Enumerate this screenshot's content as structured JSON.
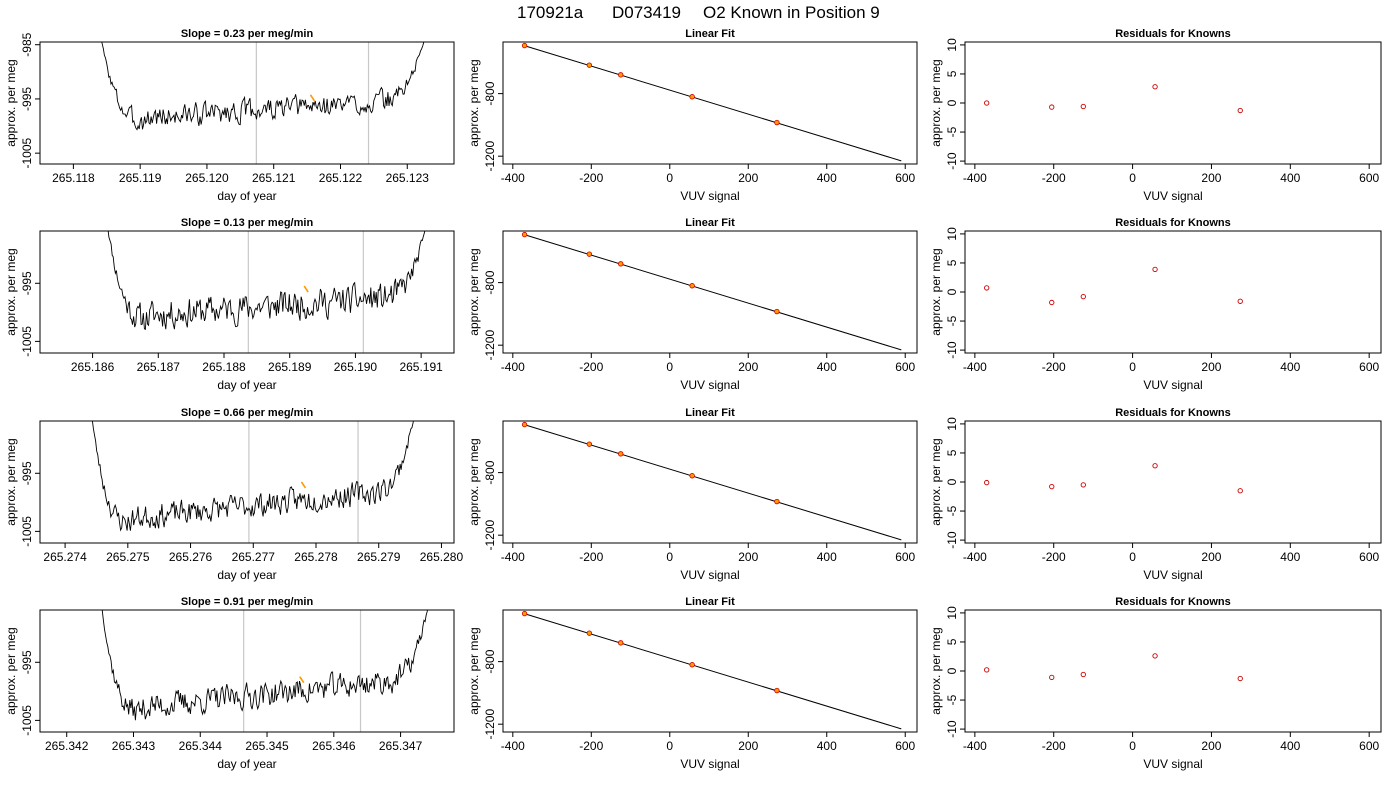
{
  "page_title": {
    "run": "170921a",
    "tank": "D073419",
    "text": "O2 Known in Position  9"
  },
  "chart_data": [
    {
      "type": "line",
      "panel": "timeseries",
      "row": 0,
      "title": "Slope =  0.23  per meg/min",
      "xlabel": "day of year",
      "ylabel": "approx. per meg",
      "xlim": [
        265.1175,
        265.1237
      ],
      "ylim": [
        -1007,
        -984.5
      ],
      "xticks": [
        "265.118",
        "265.119",
        "265.120",
        "265.121",
        "265.122",
        "265.123"
      ],
      "yticks": [
        "-985",
        "-995",
        "-1005"
      ],
      "vlines": [
        265.12074,
        265.12242
      ],
      "highlight": {
        "x": 265.12158,
        "y": -994.8
      },
      "trace": {
        "x0": 265.1184,
        "x1": 265.12328,
        "start": -983,
        "end": -983,
        "edge": 0.16,
        "base": -997.0,
        "drift": 4.0,
        "amp": 1.8,
        "seed": 3
      }
    },
    {
      "type": "line",
      "panel": "timeseries",
      "row": 1,
      "title": "Slope =  0.13  per meg/min",
      "xlabel": "day of year",
      "ylabel": "approx. per meg",
      "xlim": [
        265.1852,
        265.1915
      ],
      "ylim": [
        -1007,
        -986
      ],
      "xticks": [
        "265.186",
        "265.187",
        "265.188",
        "265.189",
        "265.190",
        "265.191"
      ],
      "yticks": [
        "-995",
        "-1005"
      ],
      "vlines": [
        265.18837,
        265.19012
      ],
      "highlight": {
        "x": 265.18925,
        "y": -996.0
      },
      "trace": {
        "x0": 265.1862,
        "x1": 265.1911,
        "start": -983,
        "end": -984,
        "edge": 0.15,
        "base": -999.0,
        "drift": 4.0,
        "amp": 2.2,
        "seed": 11
      }
    },
    {
      "type": "line",
      "panel": "timeseries",
      "row": 2,
      "title": "Slope =  0.66  per meg/min",
      "xlabel": "day of year",
      "ylabel": "approx. per meg",
      "xlim": [
        265.2736,
        265.2802
      ],
      "ylim": [
        -1007,
        -986
      ],
      "xticks": [
        "265.274",
        "265.275",
        "265.276",
        "265.277",
        "265.278",
        "265.279",
        "265.280"
      ],
      "yticks": [
        "-995",
        "-1005"
      ],
      "vlines": [
        265.27693,
        265.27867
      ],
      "highlight": {
        "x": 265.2778,
        "y": -997.0
      },
      "trace": {
        "x0": 265.2744,
        "x1": 265.2796,
        "start": -983,
        "end": -983,
        "edge": 0.14,
        "base": -1000.5,
        "drift": 6.0,
        "amp": 1.8,
        "seed": 23
      }
    },
    {
      "type": "line",
      "panel": "timeseries",
      "row": 3,
      "title": "Slope =  0.91  per meg/min",
      "xlabel": "day of year",
      "ylabel": "approx. per meg",
      "xlim": [
        265.3416,
        265.3478
      ],
      "ylim": [
        -1007,
        -986
      ],
      "xticks": [
        "265.342",
        "265.343",
        "265.344",
        "265.345",
        "265.346",
        "265.347"
      ],
      "yticks": [
        "-995",
        "-1005"
      ],
      "vlines": [
        265.34465,
        265.3464
      ],
      "highlight": {
        "x": 265.34552,
        "y": -998.0
      },
      "trace": {
        "x0": 265.3425,
        "x1": 265.34745,
        "start": -983,
        "end": -983,
        "edge": 0.14,
        "base": -1000.5,
        "drift": 6.0,
        "amp": 1.9,
        "seed": 37
      }
    },
    {
      "type": "scatter",
      "panel": "linear-fit",
      "row": 0,
      "title": "Linear Fit",
      "xlabel": "VUV signal",
      "ylabel": "approx. per meg",
      "xlim": [
        -425,
        630
      ],
      "ylim": [
        -1250,
        -470
      ],
      "xticks": [
        -400,
        -200,
        0,
        200,
        400,
        600
      ],
      "yticks": [
        -800,
        -1200
      ],
      "points": [
        [
          -370,
          -493
        ],
        [
          -205,
          -618
        ],
        [
          -125,
          -680
        ],
        [
          57,
          -820
        ],
        [
          273,
          -985
        ]
      ],
      "fit_line": {
        "x": [
          -375,
          590
        ],
        "y": [
          -490,
          -1230
        ]
      }
    },
    {
      "type": "scatter",
      "panel": "linear-fit",
      "row": 1,
      "title": "Linear Fit",
      "xlabel": "VUV signal",
      "ylabel": "approx. per meg",
      "xlim": [
        -425,
        630
      ],
      "ylim": [
        -1250,
        -470
      ],
      "xticks": [
        -400,
        -200,
        0,
        200,
        400,
        600
      ],
      "yticks": [
        -800,
        -1200
      ],
      "points": [
        [
          -370,
          -493
        ],
        [
          -205,
          -618
        ],
        [
          -125,
          -680
        ],
        [
          57,
          -820
        ],
        [
          273,
          -985
        ]
      ],
      "fit_line": {
        "x": [
          -375,
          590
        ],
        "y": [
          -490,
          -1230
        ]
      }
    },
    {
      "type": "scatter",
      "panel": "linear-fit",
      "row": 2,
      "title": "Linear Fit",
      "xlabel": "VUV signal",
      "ylabel": "approx. per meg",
      "xlim": [
        -425,
        630
      ],
      "ylim": [
        -1250,
        -470
      ],
      "xticks": [
        -400,
        -200,
        0,
        200,
        400,
        600
      ],
      "yticks": [
        -800,
        -1200
      ],
      "points": [
        [
          -370,
          -493
        ],
        [
          -205,
          -618
        ],
        [
          -125,
          -680
        ],
        [
          57,
          -820
        ],
        [
          273,
          -985
        ]
      ],
      "fit_line": {
        "x": [
          -375,
          590
        ],
        "y": [
          -490,
          -1230
        ]
      }
    },
    {
      "type": "scatter",
      "panel": "linear-fit",
      "row": 3,
      "title": "Linear Fit",
      "xlabel": "VUV signal",
      "ylabel": "approx. per meg",
      "xlim": [
        -425,
        630
      ],
      "ylim": [
        -1250,
        -470
      ],
      "xticks": [
        -400,
        -200,
        0,
        200,
        400,
        600
      ],
      "yticks": [
        -800,
        -1200
      ],
      "points": [
        [
          -370,
          -493
        ],
        [
          -205,
          -618
        ],
        [
          -125,
          -680
        ],
        [
          57,
          -820
        ],
        [
          273,
          -985
        ]
      ],
      "fit_line": {
        "x": [
          -375,
          590
        ],
        "y": [
          -490,
          -1230
        ]
      }
    },
    {
      "type": "scatter",
      "panel": "residuals",
      "row": 0,
      "title": "Residuals for Knowns",
      "xlabel": "VUV signal",
      "ylabel": "approx. per meg",
      "xlim": [
        -425,
        630
      ],
      "ylim": [
        -10.5,
        10.5
      ],
      "xticks": [
        -400,
        -200,
        0,
        200,
        400,
        600
      ],
      "yticks": [
        10,
        5,
        0,
        -5,
        -10
      ],
      "points": [
        [
          -370,
          0.0
        ],
        [
          -205,
          -0.7
        ],
        [
          -125,
          -0.6
        ],
        [
          57,
          2.8
        ],
        [
          273,
          -1.3
        ]
      ]
    },
    {
      "type": "scatter",
      "panel": "residuals",
      "row": 1,
      "title": "Residuals for Knowns",
      "xlabel": "VUV signal",
      "ylabel": "approx. per meg",
      "xlim": [
        -425,
        630
      ],
      "ylim": [
        -10.5,
        10.5
      ],
      "xticks": [
        -400,
        -200,
        0,
        200,
        400,
        600
      ],
      "yticks": [
        10,
        5,
        0,
        -5,
        -10
      ],
      "points": [
        [
          -370,
          0.7
        ],
        [
          -205,
          -1.8
        ],
        [
          -125,
          -0.8
        ],
        [
          57,
          3.9
        ],
        [
          273,
          -1.6
        ]
      ]
    },
    {
      "type": "scatter",
      "panel": "residuals",
      "row": 2,
      "title": "Residuals for Knowns",
      "xlabel": "VUV signal",
      "ylabel": "approx. per meg",
      "xlim": [
        -425,
        630
      ],
      "ylim": [
        -10.5,
        10.5
      ],
      "xticks": [
        -400,
        -200,
        0,
        200,
        400,
        600
      ],
      "yticks": [
        10,
        5,
        0,
        -5,
        -10
      ],
      "points": [
        [
          -370,
          -0.1
        ],
        [
          -205,
          -0.8
        ],
        [
          -125,
          -0.5
        ],
        [
          57,
          2.8
        ],
        [
          273,
          -1.5
        ]
      ]
    },
    {
      "type": "scatter",
      "panel": "residuals",
      "row": 3,
      "title": "Residuals for Knowns",
      "xlabel": "VUV signal",
      "ylabel": "approx. per meg",
      "xlim": [
        -425,
        630
      ],
      "ylim": [
        -10.5,
        10.5
      ],
      "xticks": [
        -400,
        -200,
        0,
        200,
        400,
        600
      ],
      "yticks": [
        10,
        5,
        0,
        -5,
        -10
      ],
      "points": [
        [
          -370,
          0.2
        ],
        [
          -205,
          -1.1
        ],
        [
          -125,
          -0.6
        ],
        [
          57,
          2.6
        ],
        [
          273,
          -1.3
        ]
      ]
    }
  ],
  "colors": {
    "trace": "#000000",
    "vline": "#c8c8c8",
    "highlight": "#ff9900",
    "point_fill": "#ff9900",
    "point_stroke": "#cc0000",
    "residual_point": "#cc0000"
  }
}
